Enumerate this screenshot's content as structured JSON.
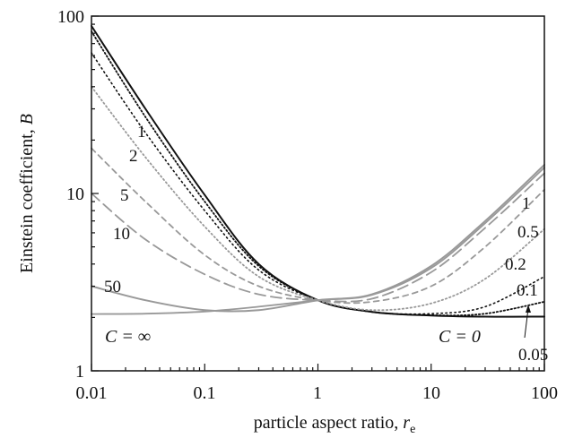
{
  "chart_data": {
    "type": "line",
    "xscale": "log",
    "yscale": "log",
    "xlim": [
      0.01,
      100
    ],
    "ylim": [
      1,
      100
    ],
    "xlabel_text": "particle aspect ratio, ",
    "xlabel_symbol": "r",
    "xlabel_subscript": "e",
    "ylabel_text": "Einstein coefficient, ",
    "ylabel_symbol": "B",
    "xticks": [
      "0.01",
      "0.1",
      "1",
      "10",
      "100"
    ],
    "yticks": [
      "1",
      "10",
      "100"
    ],
    "grid": false,
    "legend": "none",
    "series": [
      {
        "style": "solid-black",
        "x": [
          0.01,
          0.03,
          0.1,
          0.3,
          1,
          3,
          10,
          30,
          100
        ],
        "y": [
          88,
          30,
          9.8,
          4.0,
          2.5,
          2.15,
          2.05,
          2.02,
          2.02
        ]
      },
      {
        "style": "dense-dot",
        "x": [
          0.01,
          0.03,
          0.1,
          0.3,
          1,
          3,
          10,
          30,
          100
        ],
        "y": [
          82,
          27,
          9.0,
          3.9,
          2.5,
          2.15,
          2.06,
          2.1,
          2.45
        ]
      },
      {
        "style": "dot",
        "x": [
          0.01,
          0.03,
          0.1,
          0.3,
          1,
          3,
          10,
          30,
          100
        ],
        "y": [
          62,
          22,
          8.0,
          3.7,
          2.5,
          2.15,
          2.1,
          2.3,
          3.4
        ]
      },
      {
        "style": "fine-dot",
        "x": [
          0.01,
          0.03,
          0.1,
          0.3,
          1,
          3,
          10,
          30,
          100
        ],
        "y": [
          40,
          16,
          6.5,
          3.4,
          2.5,
          2.2,
          2.4,
          3.3,
          6.3
        ]
      },
      {
        "style": "dash",
        "x": [
          0.01,
          0.03,
          0.1,
          0.3,
          1,
          3,
          10,
          30,
          100
        ],
        "y": [
          18,
          9.0,
          4.5,
          3.0,
          2.5,
          2.45,
          3.0,
          5.0,
          10.5
        ]
      },
      {
        "style": "long-dash",
        "x": [
          0.01,
          0.03,
          0.1,
          0.3,
          1,
          3,
          10,
          30,
          100
        ],
        "y": [
          10,
          5.5,
          3.5,
          2.7,
          2.5,
          2.55,
          3.6,
          6.4,
          13.0
        ]
      },
      {
        "style": "gray-solid",
        "x": [
          0.01,
          0.03,
          0.1,
          0.3,
          1,
          3,
          10,
          30,
          100
        ],
        "y": [
          3.0,
          2.5,
          2.2,
          2.2,
          2.5,
          2.7,
          3.9,
          7.0,
          14.5
        ]
      },
      {
        "style": "gray-dot",
        "x": [
          0.01,
          0.03,
          0.1,
          0.3,
          1,
          3,
          10,
          30,
          100
        ],
        "y": [
          2.09,
          2.1,
          2.16,
          2.3,
          2.5,
          2.68,
          3.8,
          6.8,
          14.0
        ]
      }
    ],
    "labels": {
      "c1_left": "1",
      "c2_left": "2",
      "c5_left": "5",
      "c10_left": "10",
      "c50_left": "50",
      "cinf": "C = ∞",
      "c1_right": "1",
      "c05_right": "0.5",
      "c02_right": "0.2",
      "c01_right": "0.1",
      "c0": "C = 0",
      "c005_right": "0.05"
    }
  }
}
